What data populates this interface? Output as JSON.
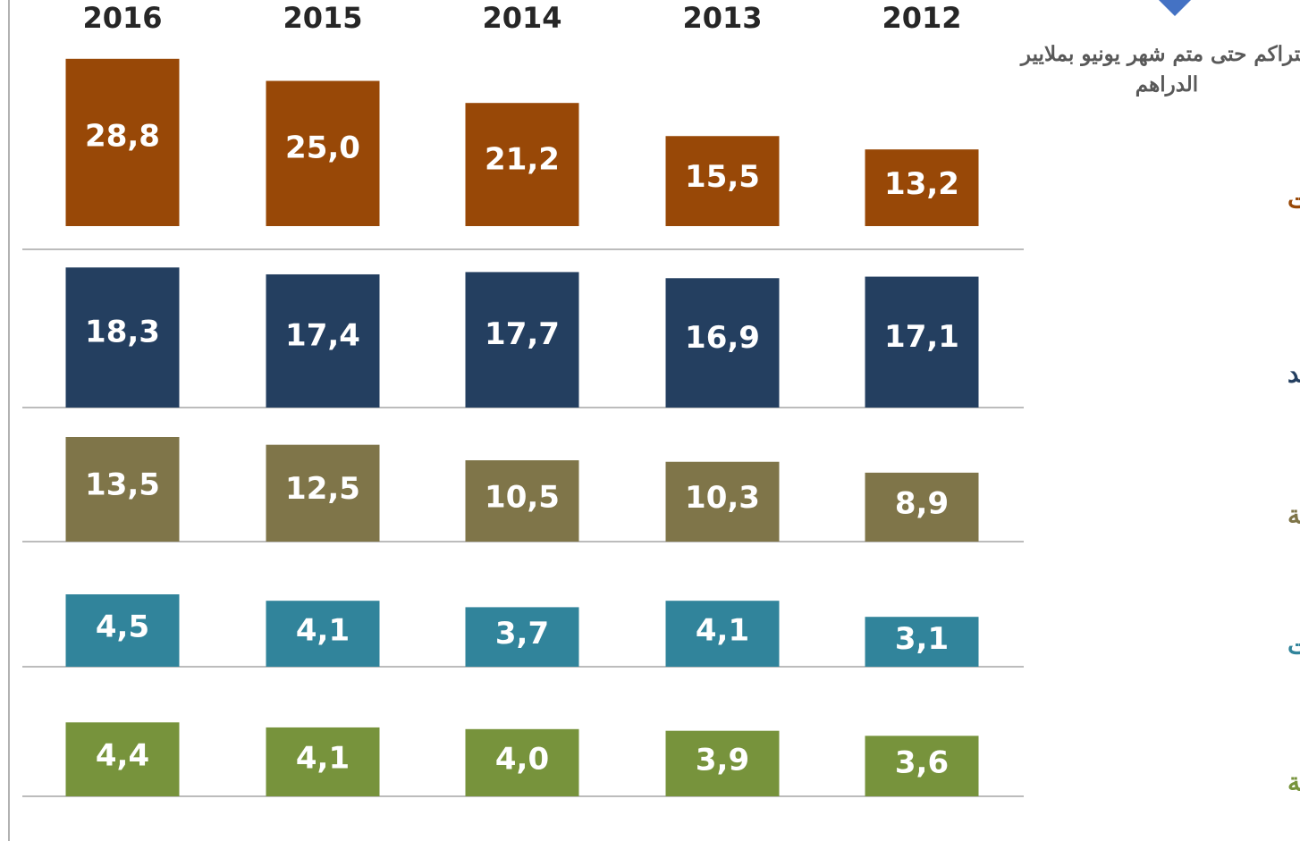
{
  "chart_data": {
    "type": "bar",
    "title": "التراكم حتى متم شهر يونيو بملايير الدراهم",
    "categories": [
      "2016",
      "2015",
      "2014",
      "2013",
      "2012"
    ],
    "series": [
      {
        "name": "صناعة السيارات",
        "color": "#984807",
        "values": [
          28.8,
          25.0,
          21.2,
          15.5,
          13.2
        ],
        "value_labels": [
          "28,8",
          "25,0",
          "21,2",
          "15,5",
          "13,2"
        ],
        "ylim": [
          -4,
          30
        ]
      },
      {
        "name": "النسيج والجلد",
        "color": "#243f60",
        "values": [
          18.3,
          17.4,
          17.7,
          16.9,
          17.1
        ],
        "value_labels": [
          "18,3",
          "17,4",
          "17,7",
          "16,9",
          "17,1"
        ],
        "ylim": [
          0,
          19.5
        ]
      },
      {
        "name": "الصناعات الغذائية",
        "color": "#7f7549",
        "values": [
          13.5,
          12.5,
          10.5,
          10.3,
          8.9
        ],
        "value_labels": [
          "13,5",
          "12,5",
          "10,5",
          "10,3",
          "8,9"
        ],
        "ylim": [
          0,
          15
        ]
      },
      {
        "name": "صناعة الطائرات",
        "color": "#31849b",
        "values": [
          4.5,
          4.1,
          3.7,
          4.1,
          3.1
        ],
        "value_labels": [
          "4,5",
          "4,1",
          "3,7",
          "4,1",
          "3,1"
        ],
        "ylim": [
          0,
          5
        ]
      },
      {
        "name": "الصناعات الإلكترونية",
        "color": "#77933c",
        "values": [
          4.4,
          4.1,
          4.0,
          3.9,
          3.6
        ],
        "value_labels": [
          "4,4",
          "4,1",
          "4,0",
          "3,9",
          "3,6"
        ],
        "ylim": [
          0,
          5
        ]
      }
    ]
  }
}
